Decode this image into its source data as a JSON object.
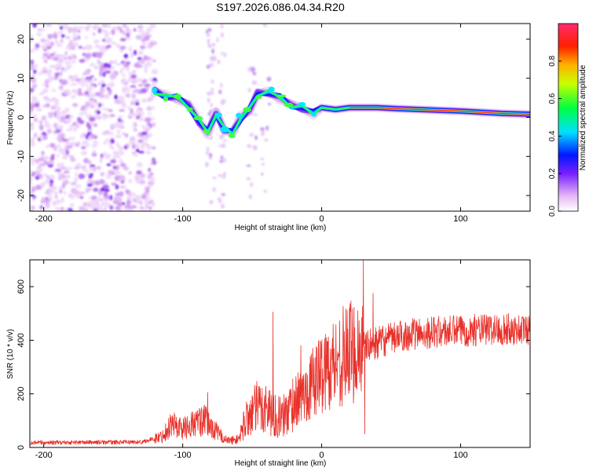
{
  "title": "S197.2026.086.04.34.R20",
  "chart_data": [
    {
      "type": "heatmap",
      "name": "spectrogram",
      "xlabel": "Height of straight line (km)",
      "ylabel": "Frequency (Hz)",
      "xlim": [
        -210,
        150
      ],
      "ylim": [
        -24,
        24
      ],
      "xticks": [
        -200,
        -100,
        0,
        100
      ],
      "yticks": [
        -20,
        -10,
        0,
        10,
        20
      ],
      "ridge": [
        {
          "x": -120,
          "y": 6.5
        },
        {
          "x": -112,
          "y": 5.5
        },
        {
          "x": -104,
          "y": 5
        },
        {
          "x": -96,
          "y": 3
        },
        {
          "x": -88,
          "y": -1
        },
        {
          "x": -82,
          "y": -4
        },
        {
          "x": -76,
          "y": 1
        },
        {
          "x": -70,
          "y": -3
        },
        {
          "x": -64,
          "y": -4
        },
        {
          "x": -58,
          "y": 0
        },
        {
          "x": -52,
          "y": 2
        },
        {
          "x": -46,
          "y": 6
        },
        {
          "x": -38,
          "y": 6.5
        },
        {
          "x": -30,
          "y": 5
        },
        {
          "x": -22,
          "y": 3
        },
        {
          "x": -14,
          "y": 2.5
        },
        {
          "x": -6,
          "y": 1
        },
        {
          "x": 0,
          "y": 2.5
        },
        {
          "x": 10,
          "y": 2
        },
        {
          "x": 20,
          "y": 2.5
        },
        {
          "x": 30,
          "y": 2.5
        },
        {
          "x": 40,
          "y": 2.5
        },
        {
          "x": 55,
          "y": 2.2
        },
        {
          "x": 70,
          "y": 2
        },
        {
          "x": 85,
          "y": 1.8
        },
        {
          "x": 100,
          "y": 1.6
        },
        {
          "x": 115,
          "y": 1.3
        },
        {
          "x": 130,
          "y": 1
        },
        {
          "x": 150,
          "y": 0.8
        }
      ],
      "noise_region_x": [
        -210,
        -120
      ],
      "colorbar": {
        "label": "Normalized spectral amplitude",
        "range": [
          0.0,
          1.0
        ],
        "ticks": [
          0.0,
          0.2,
          0.4,
          0.6,
          0.8
        ]
      }
    },
    {
      "type": "line",
      "name": "snr",
      "xlabel": "Height of straight line (km)",
      "ylabel": "SNR (10 * v/v)",
      "xlim": [
        -210,
        150
      ],
      "ylim": [
        0,
        700
      ],
      "xticks": [
        -200,
        -100,
        0,
        100
      ],
      "yticks": [
        0,
        200,
        400,
        600
      ],
      "color": "#e8312a",
      "envelope": [
        {
          "x": -210,
          "y": 18
        },
        {
          "x": -130,
          "y": 20
        },
        {
          "x": -115,
          "y": 40
        },
        {
          "x": -108,
          "y": 90
        },
        {
          "x": -100,
          "y": 70
        },
        {
          "x": -92,
          "y": 90
        },
        {
          "x": -84,
          "y": 100
        },
        {
          "x": -76,
          "y": 60
        },
        {
          "x": -68,
          "y": 25
        },
        {
          "x": -60,
          "y": 30
        },
        {
          "x": -54,
          "y": 110
        },
        {
          "x": -46,
          "y": 150
        },
        {
          "x": -40,
          "y": 150
        },
        {
          "x": -34,
          "y": 120
        },
        {
          "x": -28,
          "y": 110
        },
        {
          "x": -20,
          "y": 170
        },
        {
          "x": -12,
          "y": 200
        },
        {
          "x": -4,
          "y": 260
        },
        {
          "x": 5,
          "y": 300
        },
        {
          "x": 15,
          "y": 340
        },
        {
          "x": 25,
          "y": 370
        },
        {
          "x": 40,
          "y": 390
        },
        {
          "x": 60,
          "y": 420
        },
        {
          "x": 80,
          "y": 430
        },
        {
          "x": 100,
          "y": 435
        },
        {
          "x": 120,
          "y": 440
        },
        {
          "x": 150,
          "y": 440
        }
      ],
      "spikes": [
        {
          "x": -82,
          "y": 205
        },
        {
          "x": -35,
          "y": 505
        },
        {
          "x": -15,
          "y": 380
        },
        {
          "x": 20,
          "y": 520
        },
        {
          "x": 30,
          "y": 700
        },
        {
          "x": 31,
          "y": 50
        },
        {
          "x": 37,
          "y": 575
        }
      ]
    }
  ]
}
